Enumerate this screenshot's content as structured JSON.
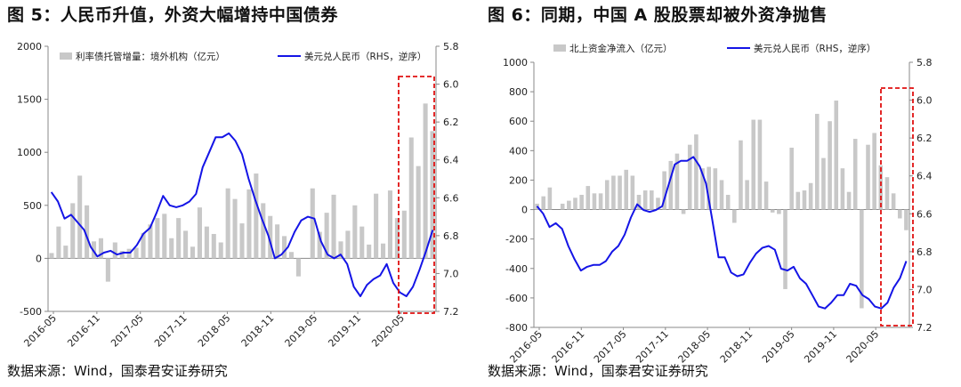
{
  "chart_data": [
    {
      "type": "bar",
      "title": "图 5：人民币升值，外资大幅增持中国债券",
      "source": "数据来源：Wind，国泰君安证券研究",
      "x_tick_labels": [
        "2016-05",
        "2016-11",
        "2017-05",
        "2017-11",
        "2018-05",
        "2018-11",
        "2019-05",
        "2019-11",
        "2020-05"
      ],
      "y_left": {
        "lim": [
          -500,
          2000
        ],
        "ticks": [
          -500,
          0,
          500,
          1000,
          1500,
          2000
        ]
      },
      "y_right": {
        "lim": [
          5.8,
          7.2
        ],
        "inverted": true,
        "ticks": [
          5.8,
          6.0,
          6.2,
          6.4,
          6.6,
          6.8,
          7.0,
          7.2
        ]
      },
      "series": [
        {
          "name": "利率债托管增量：境外机构（亿元）",
          "kind": "bar",
          "axis": "left",
          "color": "#c8c8c8",
          "values": [
            50,
            300,
            120,
            520,
            780,
            500,
            160,
            190,
            -220,
            150,
            70,
            90,
            100,
            240,
            320,
            380,
            420,
            190,
            380,
            260,
            110,
            480,
            300,
            230,
            150,
            660,
            560,
            330,
            650,
            800,
            520,
            400,
            320,
            210,
            60,
            -170,
            0,
            660,
            250,
            430,
            600,
            160,
            260,
            500,
            300,
            130,
            610,
            140,
            640,
            380,
            450,
            1140,
            870,
            1460,
            1200
          ]
        },
        {
          "name": "美元兑人民币（RHS，逆序）",
          "kind": "line",
          "axis": "right",
          "color": "#1414e6",
          "values": [
            6.57,
            6.62,
            6.71,
            6.69,
            6.73,
            6.77,
            6.86,
            6.91,
            6.89,
            6.88,
            6.9,
            6.89,
            6.89,
            6.85,
            6.79,
            6.76,
            6.68,
            6.59,
            6.64,
            6.65,
            6.64,
            6.62,
            6.58,
            6.44,
            6.36,
            6.28,
            6.28,
            6.26,
            6.3,
            6.37,
            6.5,
            6.61,
            6.71,
            6.8,
            6.92,
            6.9,
            6.86,
            6.78,
            6.72,
            6.7,
            6.71,
            6.83,
            6.9,
            6.92,
            6.9,
            6.95,
            7.07,
            7.12,
            7.06,
            7.03,
            7.01,
            6.95,
            7.05,
            7.1,
            7.12,
            7.07,
            6.98,
            6.88,
            6.77
          ]
        }
      ],
      "annotation": "red dashed box around 2020-01 to latest"
    },
    {
      "type": "bar",
      "title": "图 6：同期，中国 A 股股票却被外资净抛售",
      "source": "数据来源：Wind，国泰君安证券研究",
      "x_tick_labels": [
        "2016-05",
        "2016-11",
        "2017-05",
        "2017-11",
        "2018-05",
        "2018-11",
        "2019-05",
        "2019-11",
        "2020-05"
      ],
      "y_left": {
        "lim": [
          -800,
          1000
        ],
        "ticks": [
          -800,
          -600,
          -400,
          -200,
          0,
          200,
          400,
          600,
          800,
          1000
        ]
      },
      "y_right": {
        "lim": [
          5.8,
          7.2
        ],
        "inverted": true,
        "ticks": [
          5.8,
          6.0,
          6.2,
          6.4,
          6.6,
          6.8,
          7.0,
          7.2
        ]
      },
      "series": [
        {
          "name": "北上资金净流入（亿元）",
          "kind": "bar",
          "axis": "left",
          "color": "#c8c8c8",
          "values": [
            40,
            90,
            150,
            0,
            40,
            60,
            80,
            100,
            160,
            110,
            110,
            200,
            230,
            230,
            270,
            230,
            100,
            130,
            130,
            80,
            260,
            330,
            380,
            -30,
            440,
            510,
            280,
            290,
            280,
            200,
            100,
            -90,
            470,
            200,
            610,
            610,
            190,
            -20,
            -30,
            -540,
            420,
            120,
            130,
            180,
            650,
            350,
            600,
            740,
            280,
            120,
            480,
            -670,
            440,
            520,
            300,
            220,
            110,
            -60,
            -140
          ]
        },
        {
          "name": "美元兑人民币（RHS，逆序）",
          "kind": "line",
          "axis": "right",
          "color": "#1414e6",
          "values": [
            6.56,
            6.6,
            6.67,
            6.65,
            6.68,
            6.77,
            6.84,
            6.9,
            6.88,
            6.87,
            6.87,
            6.85,
            6.8,
            6.77,
            6.71,
            6.62,
            6.55,
            6.58,
            6.59,
            6.58,
            6.56,
            6.45,
            6.34,
            6.32,
            6.32,
            6.3,
            6.35,
            6.44,
            6.63,
            6.83,
            6.83,
            6.91,
            6.93,
            6.92,
            6.86,
            6.81,
            6.78,
            6.77,
            6.79,
            6.89,
            6.9,
            6.88,
            6.94,
            6.97,
            7.03,
            7.09,
            7.1,
            7.07,
            7.03,
            7.03,
            6.97,
            6.98,
            7.03,
            7.05,
            7.09,
            7.1,
            7.07,
            6.99,
            6.94,
            6.85
          ]
        }
      ],
      "annotation": "red dashed box around 2020-01 to latest"
    }
  ]
}
